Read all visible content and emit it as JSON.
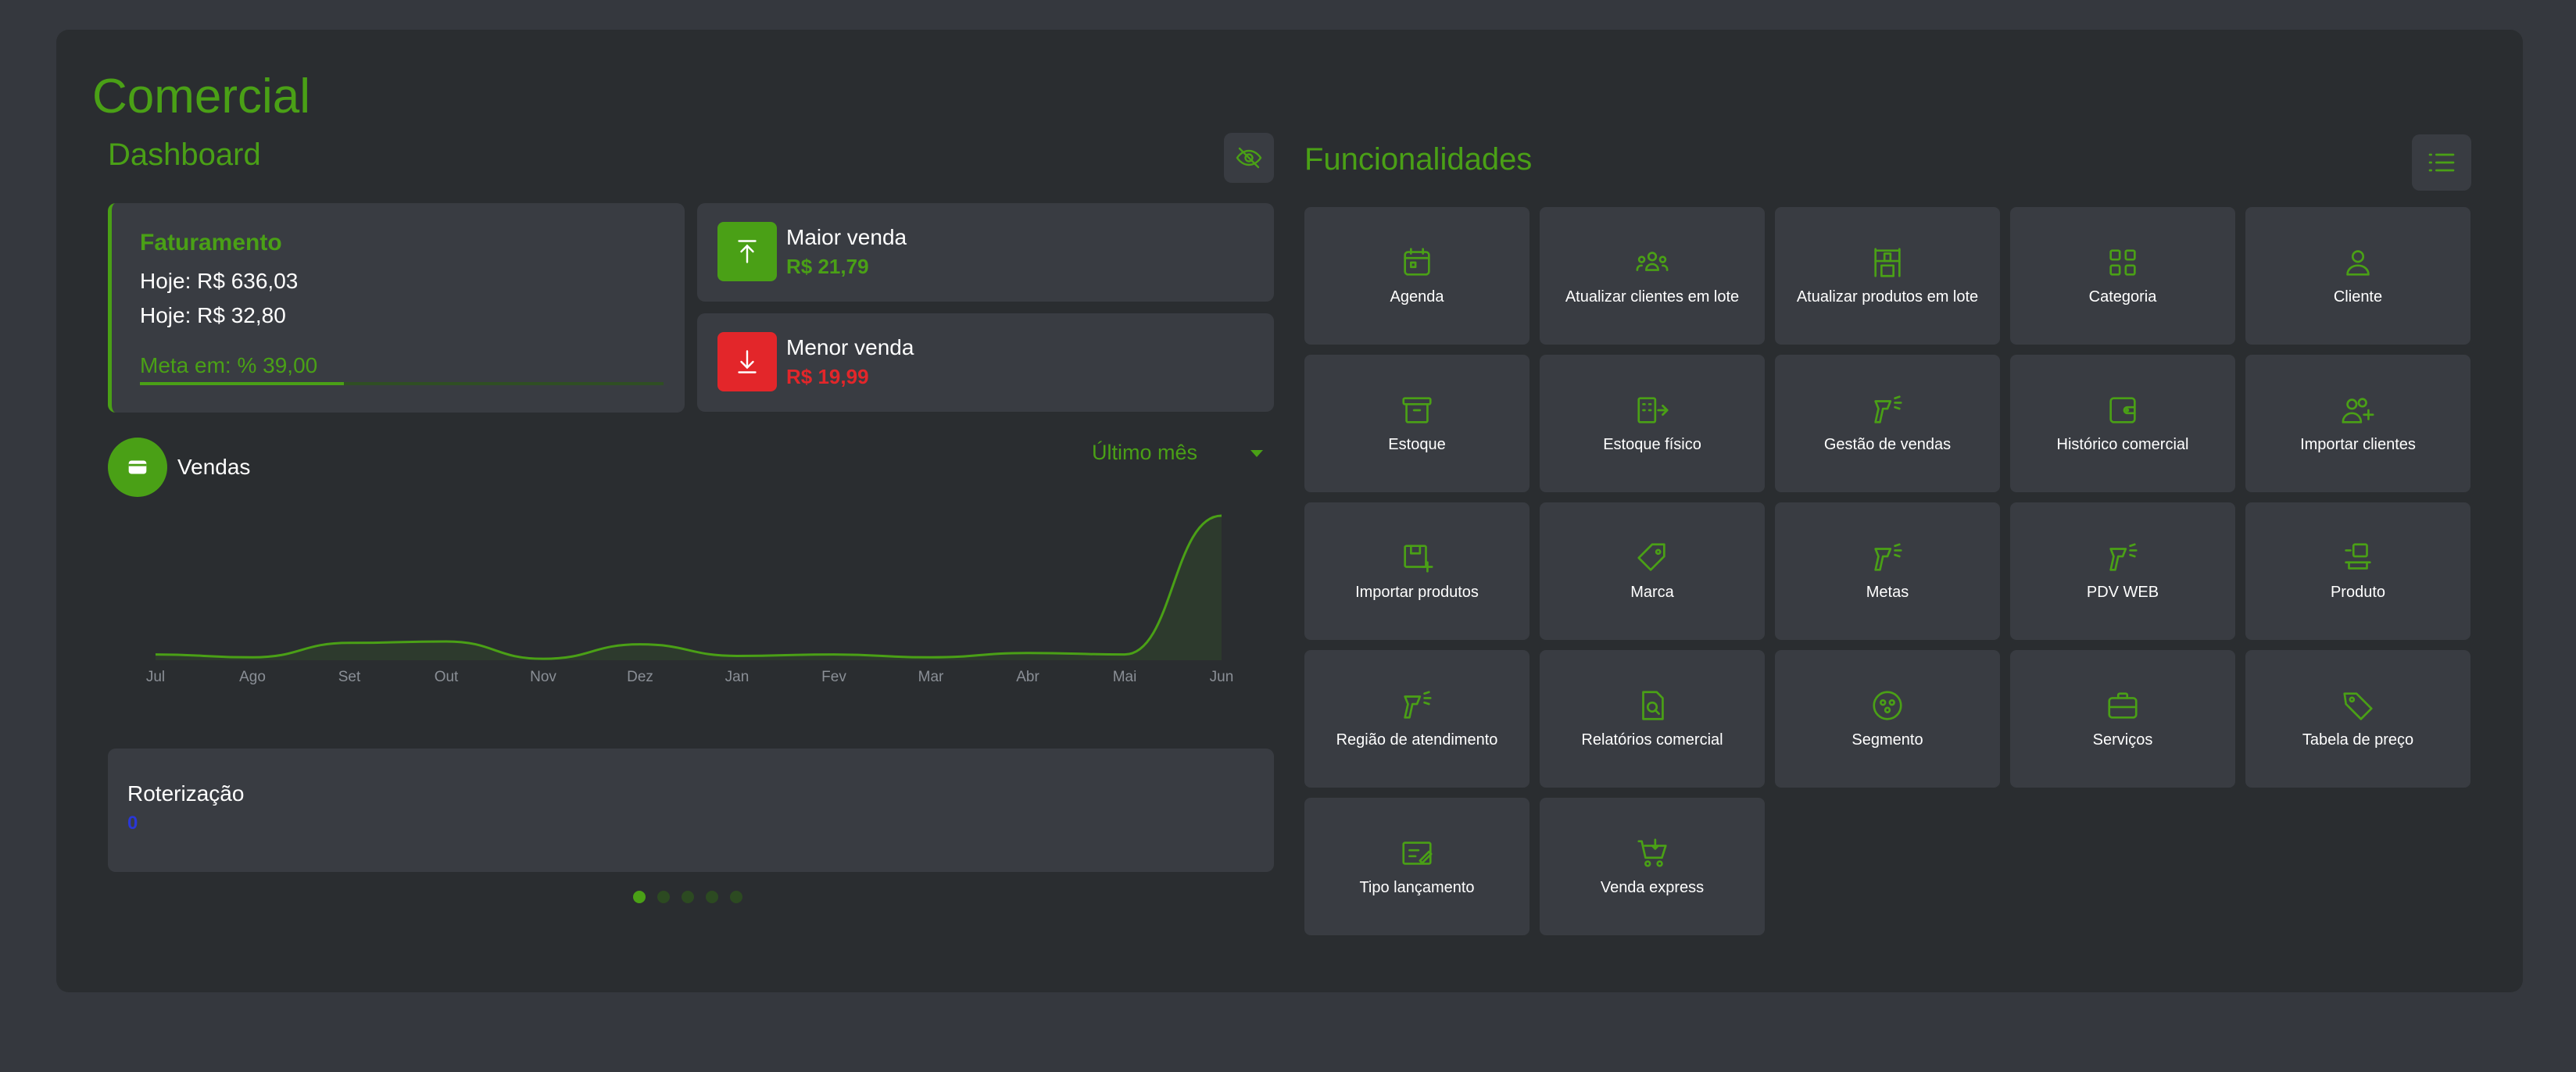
{
  "page": {
    "title": "Comercial"
  },
  "dashboard": {
    "title": "Dashboard",
    "faturamento": {
      "title": "Faturamento",
      "line1": "Hoje: R$ 636,03",
      "line2": "Hoje: R$ 32,80",
      "meta": "Meta em: % 39,00",
      "meta_progress": 0.39
    },
    "maior_venda": {
      "label": "Maior venda",
      "value": "R$ 21,79",
      "color": "#4aa016"
    },
    "menor_venda": {
      "label": "Menor venda",
      "value": "R$ 19,99",
      "color": "#e3262a"
    },
    "vendas": {
      "label": "Vendas",
      "period": "Último mês"
    },
    "roterizacao": {
      "title": "Roterização",
      "value": "0"
    },
    "carousel": {
      "pages": 5,
      "active": 0
    }
  },
  "chart_data": {
    "type": "area",
    "categories": [
      "Jul",
      "Ago",
      "Set",
      "Out",
      "Nov",
      "Dez",
      "Jan",
      "Fev",
      "Mar",
      "Abr",
      "Mai",
      "Jun"
    ],
    "values": [
      4,
      2,
      12,
      13,
      1,
      11,
      3,
      4,
      2,
      5,
      4,
      100
    ],
    "title": "",
    "xlabel": "",
    "ylabel": "",
    "grid": false
  },
  "funcionalidades": {
    "title": "Funcionalidades",
    "items": [
      {
        "label": "Agenda",
        "icon": "calendar-icon"
      },
      {
        "label": "Atualizar clientes em lote",
        "icon": "users-group-icon"
      },
      {
        "label": "Atualizar produtos em lote",
        "icon": "shelf-icon"
      },
      {
        "label": "Categoria",
        "icon": "grid-icon"
      },
      {
        "label": "Cliente",
        "icon": "user-icon"
      },
      {
        "label": "Estoque",
        "icon": "archive-icon"
      },
      {
        "label": "Estoque físico",
        "icon": "building-arrow-icon"
      },
      {
        "label": "Gestão de vendas",
        "icon": "scanner-icon"
      },
      {
        "label": "Histórico comercial",
        "icon": "wallet-icon"
      },
      {
        "label": "Importar clientes",
        "icon": "user-add-icon"
      },
      {
        "label": "Importar produtos",
        "icon": "box-import-icon"
      },
      {
        "label": "Marca",
        "icon": "tag-icon"
      },
      {
        "label": "Metas",
        "icon": "scanner-icon"
      },
      {
        "label": "PDV WEB",
        "icon": "scanner-icon"
      },
      {
        "label": "Produto",
        "icon": "product-icon"
      },
      {
        "label": "Região de atendimento",
        "icon": "scanner-icon"
      },
      {
        "label": "Relatórios comercial",
        "icon": "report-search-icon"
      },
      {
        "label": "Segmento",
        "icon": "segment-icon"
      },
      {
        "label": "Serviços",
        "icon": "briefcase-icon"
      },
      {
        "label": "Tabela de preço",
        "icon": "price-tag-icon"
      },
      {
        "label": "Tipo lançamento",
        "icon": "entry-type-icon"
      },
      {
        "label": "Venda express",
        "icon": "cart-icon"
      }
    ]
  }
}
